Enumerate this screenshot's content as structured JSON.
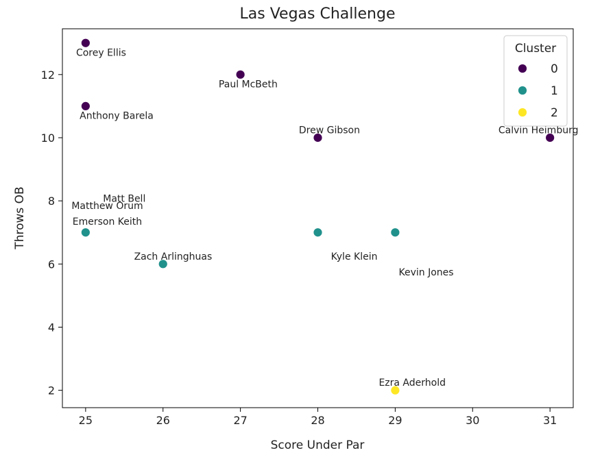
{
  "chart_data": {
    "type": "scatter",
    "title": "Las Vegas Challenge",
    "xlabel": "Score Under Par",
    "ylabel": "Throws OB",
    "xlim": [
      24.7,
      31.3
    ],
    "ylim": [
      1.45,
      13.45
    ],
    "xticks": [
      25,
      26,
      27,
      28,
      29,
      30,
      31
    ],
    "yticks": [
      2,
      4,
      6,
      8,
      10,
      12
    ],
    "grid": false,
    "legend": {
      "title": "Cluster",
      "placement": "top-right",
      "entries": [
        {
          "label": "0",
          "color": "#440154"
        },
        {
          "label": "1",
          "color": "#21918c"
        },
        {
          "label": "2",
          "color": "#fde725"
        }
      ]
    },
    "points": [
      {
        "name": "Corey Ellis",
        "x": 25,
        "y": 13,
        "cluster": 0,
        "label_x": 25.2,
        "label_y": 12.7
      },
      {
        "name": "Paul McBeth",
        "x": 27,
        "y": 12,
        "cluster": 0,
        "label_x": 27.1,
        "label_y": 11.7
      },
      {
        "name": "Anthony Barela",
        "x": 25,
        "y": 11,
        "cluster": 0,
        "label_x": 25.4,
        "label_y": 10.7
      },
      {
        "name": "Drew Gibson",
        "x": 28,
        "y": 10,
        "cluster": 0,
        "label_x": 28.15,
        "label_y": 10.25
      },
      {
        "name": "Calvin Heimburg",
        "x": 31,
        "y": 10,
        "cluster": 0,
        "label_x": 30.85,
        "label_y": 10.25
      },
      {
        "name": "Matthew Orum",
        "x": 25,
        "y": 7,
        "cluster": 1,
        "label_x": 25.28,
        "label_y": 7.85
      },
      {
        "name": "Matt Bell",
        "x": 25,
        "y": 7,
        "cluster": 1,
        "label_x": 25.5,
        "label_y": 8.08
      },
      {
        "name": "Emerson Keith",
        "x": 25,
        "y": 7,
        "cluster": 1,
        "label_x": 25.28,
        "label_y": 7.35
      },
      {
        "name": "Zach Arlinghuas",
        "x": 26,
        "y": 6,
        "cluster": 1,
        "label_x": 26.13,
        "label_y": 6.25
      },
      {
        "name": "Kyle Klein",
        "x": 28,
        "y": 7,
        "cluster": 1,
        "label_x": 28.47,
        "label_y": 6.25
      },
      {
        "name": "Kevin Jones",
        "x": 29,
        "y": 7,
        "cluster": 1,
        "label_x": 29.4,
        "label_y": 5.75
      },
      {
        "name": "Ezra Aderhold",
        "x": 29,
        "y": 2,
        "cluster": 2,
        "label_x": 29.22,
        "label_y": 2.25
      }
    ]
  }
}
